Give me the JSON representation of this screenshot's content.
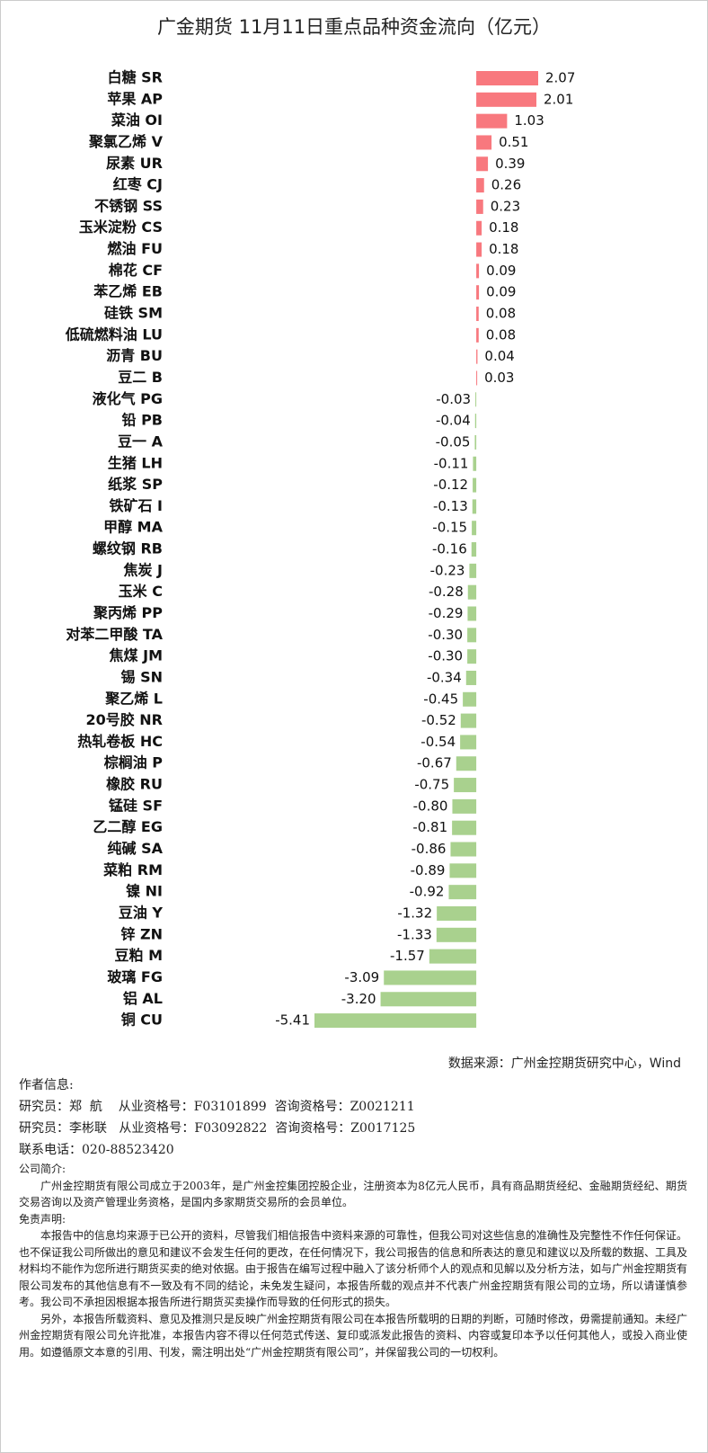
{
  "chart_data": {
    "type": "hbar",
    "title": "广金期货 11月11日重点品种资金流向（亿元）",
    "categories": [
      "白糖 SR",
      "苹果 AP",
      "菜油 OI",
      "聚氯乙烯 V",
      "尿素 UR",
      "红枣 CJ",
      "不锈钢 SS",
      "玉米淀粉 CS",
      "燃油 FU",
      "棉花 CF",
      "苯乙烯 EB",
      "硅铁 SM",
      "低硫燃料油 LU",
      "沥青 BU",
      "豆二 B",
      "液化气 PG",
      "铅 PB",
      "豆一 A",
      "生猪 LH",
      "纸浆 SP",
      "铁矿石 I",
      "甲醇 MA",
      "螺纹钢 RB",
      "焦炭 J",
      "玉米 C",
      "聚丙烯 PP",
      "对苯二甲酸 TA",
      "焦煤 JM",
      "锡 SN",
      "聚乙烯 L",
      "20号胶 NR",
      "热轧卷板 HC",
      "棕榈油 P",
      "橡胶 RU",
      "锰硅 SF",
      "乙二醇 EG",
      "纯碱 SA",
      "菜粕 RM",
      "镍 NI",
      "豆油 Y",
      "锌 ZN",
      "豆粕 M",
      "玻璃 FG",
      "铝 AL",
      "铜 CU"
    ],
    "values": [
      2.07,
      2.01,
      1.03,
      0.51,
      0.39,
      0.26,
      0.23,
      0.18,
      0.18,
      0.09,
      0.09,
      0.08,
      0.08,
      0.04,
      0.03,
      -0.03,
      -0.04,
      -0.05,
      -0.11,
      -0.12,
      -0.13,
      -0.15,
      -0.16,
      -0.23,
      -0.28,
      -0.29,
      -0.3,
      -0.3,
      -0.34,
      -0.45,
      -0.52,
      -0.54,
      -0.67,
      -0.75,
      -0.8,
      -0.81,
      -0.86,
      -0.89,
      -0.92,
      -1.32,
      -1.33,
      -1.57,
      -3.09,
      -3.2,
      -5.41
    ],
    "value_labels": [
      "2.07",
      "2.01",
      "1.03",
      "0.51",
      "0.39",
      "0.26",
      "0.23",
      "0.18",
      "0.18",
      "0.09",
      "0.09",
      "0.08",
      "0.08",
      "0.04",
      "0.03",
      "-0.03",
      "-0.04",
      "-0.05",
      "-0.11",
      "-0.12",
      "-0.13",
      "-0.15",
      "-0.16",
      "-0.23",
      "-0.28",
      "-0.29",
      "-0.30",
      "-0.30",
      "-0.34",
      "-0.45",
      "-0.52",
      "-0.54",
      "-0.67",
      "-0.75",
      "-0.80",
      "-0.81",
      "-0.86",
      "-0.89",
      "-0.92",
      "-1.32",
      "-1.33",
      "-1.57",
      "-3.09",
      "-3.20",
      "-5.41"
    ],
    "positive_color": "#f8787e",
    "negative_color": "#a9d18e",
    "source": "数据来源：广州金控期货研究中心，Wind"
  },
  "author": {
    "heading": "作者信息:",
    "lines": [
      "研究员：郑  航    从业资格号：F03101899  咨询资格号：Z0021211",
      "研究员：李彬联   从业资格号：F03092822  咨询资格号：Z0017125",
      "联系电话：020-88523420"
    ]
  },
  "company": {
    "heading": "公司简介:",
    "text": "广州金控期货有限公司成立于2003年，是广州金控集团控股企业，注册资本为8亿元人民币，具有商品期货经纪、金融期货经纪、期货交易咨询以及资产管理业务资格，是国内多家期货交易所的会员单位。"
  },
  "disclaimer": {
    "heading": "免责声明:",
    "paragraphs": [
      "本报告中的信息均来源于已公开的资料，尽管我们相信报告中资料来源的可靠性，但我公司对这些信息的准确性及完整性不作任何保证。也不保证我公司所做出的意见和建议不会发生任何的更改，在任何情况下，我公司报告的信息和所表达的意见和建议以及所载的数据、工具及材料均不能作为您所进行期货买卖的绝对依据。由于报告在编写过程中融入了该分析师个人的观点和见解以及分析方法，如与广州金控期货有限公司发布的其他信息有不一致及有不同的结论，未免发生疑问，本报告所载的观点并不代表广州金控期货有限公司的立场，所以请谨慎参考。我公司不承担因根据本报告所进行期货买卖操作而导致的任何形式的损失。",
      "另外，本报告所载资料、意见及推测只是反映广州金控期货有限公司在本报告所载明的日期的判断，可随时修改，毋需提前通知。未经广州金控期货有限公司允许批准，本报告内容不得以任何范式传送、复印或派发此报告的资料、内容或复印本予以任何其他人，或投入商业使用。如遵循原文本意的引用、刊发，需注明出处“广州金控期货有限公司”，并保留我公司的一切权利。"
    ]
  }
}
